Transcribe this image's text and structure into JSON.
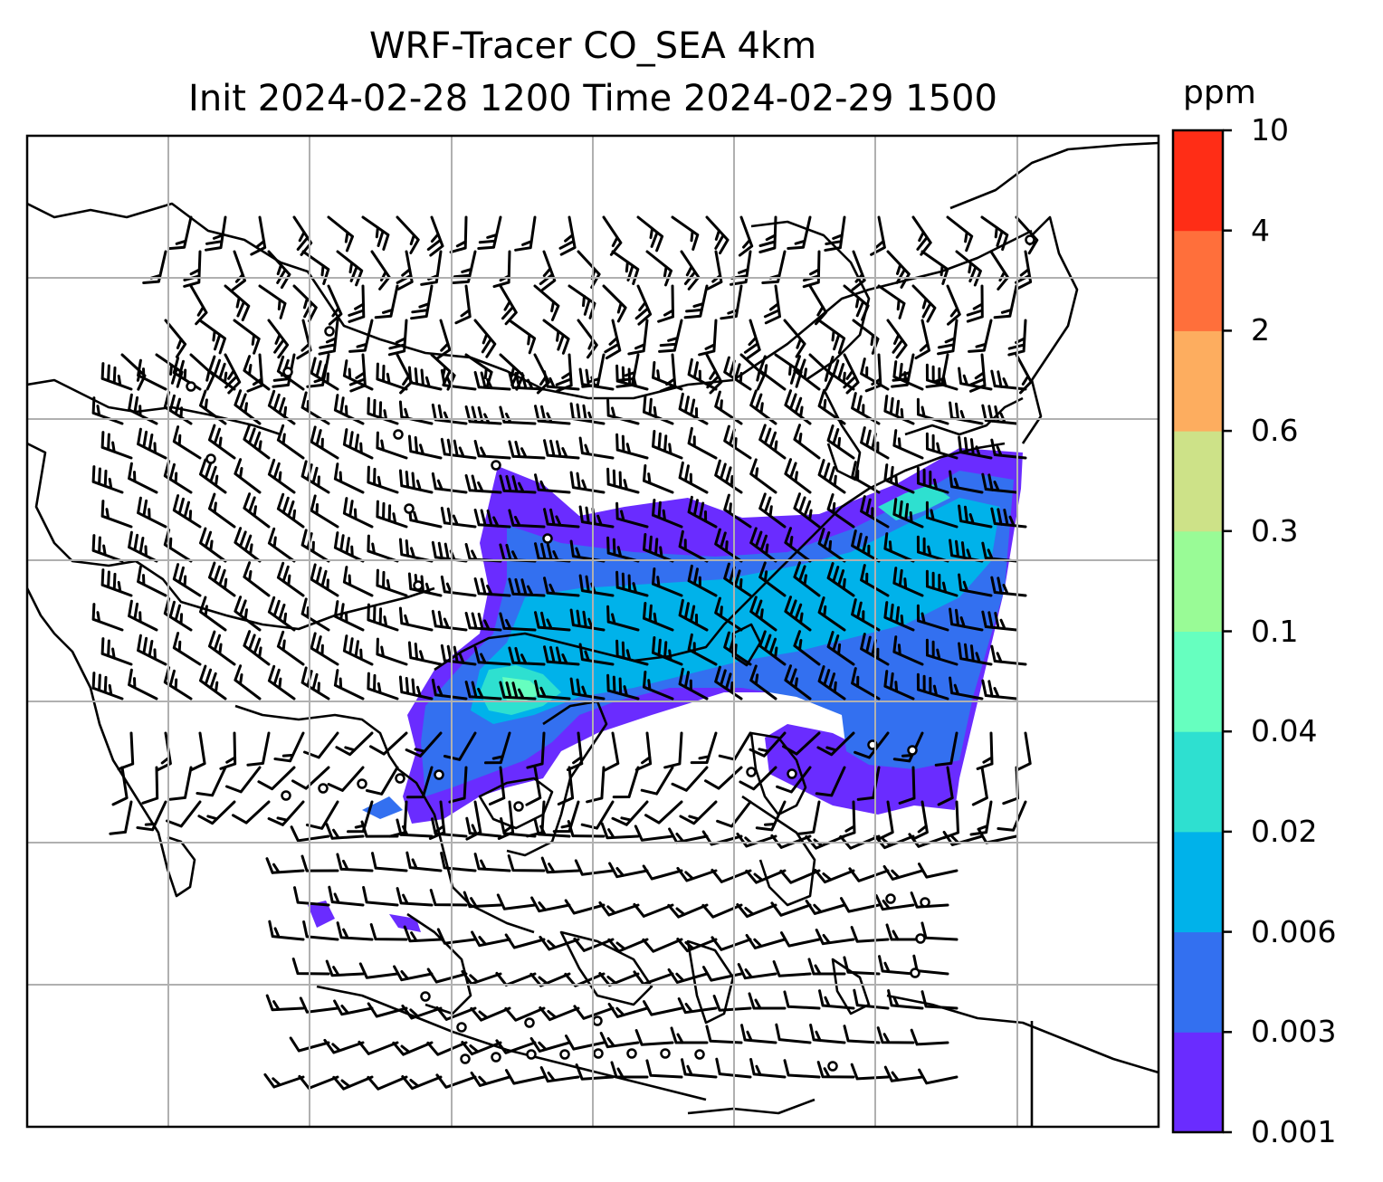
{
  "title": {
    "line1": "WRF-Tracer CO_SEA 4km",
    "line2": "Init 2024-02-28 1200 Time 2024-02-29 1500"
  },
  "colorbar": {
    "unit": "ppm",
    "levels": [
      "0.001",
      "0.003",
      "0.006",
      "0.02",
      "0.04",
      "0.1",
      "0.3",
      "0.6",
      "2",
      "4",
      "10"
    ],
    "colors": [
      "#6a2cff",
      "#3370f0",
      "#00b2ea",
      "#2ee0d0",
      "#66ffbf",
      "#99fb96",
      "#cde288",
      "#fdad5f",
      "#ff6f3b",
      "#ff2d16"
    ]
  },
  "map": {
    "projection": "lat-lon",
    "gridlines": true,
    "variable": "CO tracer concentration",
    "overlay": "wind barbs"
  }
}
